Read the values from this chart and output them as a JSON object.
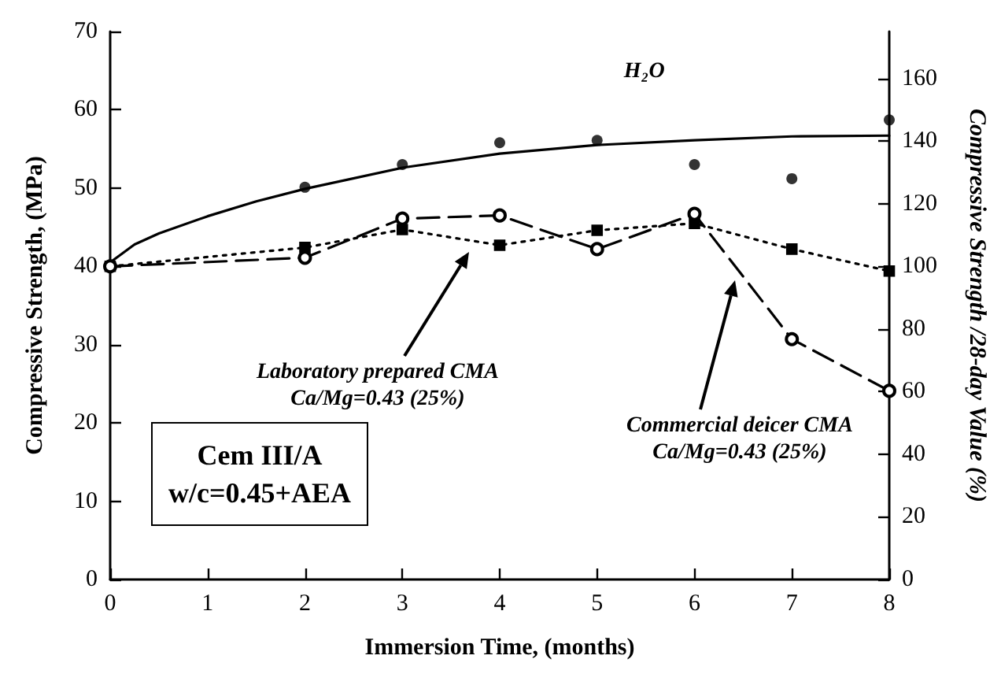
{
  "chart_data": {
    "type": "line",
    "xlabel": "Immersion Time, (months)",
    "ylabel": "Compressive Strength, (MPa)",
    "y2label": "Compressive Strength /28-day Value (%)",
    "x": [
      0,
      2,
      3,
      4,
      5,
      6,
      7,
      8
    ],
    "series": [
      {
        "type": "scatter",
        "color": "#000000",
        "marker": "circle",
        "x": [
          2,
          3,
          4,
          5,
          6,
          7,
          8
        ],
        "values": [
          50.1,
          53.0,
          55.8,
          56.1,
          53.0,
          51.2,
          58.7
        ]
      },
      {
        "type": "line",
        "name": "H₂O",
        "color": "#000000",
        "marker": "none",
        "line_style": "solid",
        "x": [
          0,
          0.25,
          0.5,
          1,
          1.5,
          2,
          3,
          4,
          5,
          6,
          7,
          8
        ],
        "values": [
          40.5,
          42.8,
          44.2,
          46.4,
          48.3,
          49.9,
          52.6,
          54.4,
          55.5,
          56.1,
          56.6,
          56.7
        ]
      },
      {
        "type": "line",
        "color": "#000000",
        "marker": "square",
        "line_style": "dotted",
        "values": [
          40.0,
          42.4,
          44.7,
          42.7,
          44.6,
          45.5,
          42.2,
          39.4
        ]
      },
      {
        "type": "line",
        "color": "#000000",
        "marker": "circle",
        "line_style": "dashed",
        "values": [
          40.0,
          41.1,
          46.1,
          46.5,
          42.2,
          46.7,
          30.7,
          24.1
        ]
      }
    ],
    "xlim": [
      0,
      8
    ],
    "xticks": [
      0,
      1,
      2,
      3,
      4,
      5,
      6,
      7,
      8
    ],
    "ylim": [
      0,
      70
    ],
    "yticks": [
      0,
      10,
      20,
      30,
      40,
      50,
      60,
      70
    ],
    "y2lim": [
      0,
      175
    ],
    "y2ticks": [
      0,
      20,
      40,
      60,
      80,
      100,
      120,
      140,
      160
    ],
    "grid": false,
    "legend": false,
    "annotations": [
      "Laboratory prepared CMA\nCa/Mg=0.43 (25%)",
      "Commercial deicer CMA\nCa/Mg=0.43 (25%)",
      "Cem III/A",
      "w/c=0.45+AEA"
    ]
  }
}
